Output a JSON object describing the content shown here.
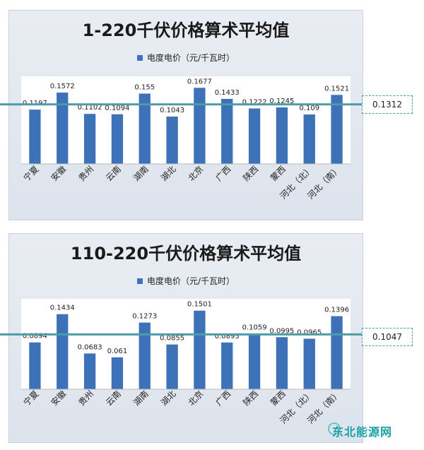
{
  "colors": {
    "bar": "#3d72b8",
    "avg_line": "#4e9ba6",
    "panel": "#e3e8ef"
  },
  "chart_data": [
    {
      "type": "bar",
      "title": "1-220千伏价格算术平均值",
      "legend": "电度电价（元/千瓦时）",
      "categories": [
        "宁夏",
        "安徽",
        "贵州",
        "云南",
        "湖南",
        "湖北",
        "北京",
        "广西",
        "陕西",
        "蒙西",
        "河北（北）",
        "河北（南）"
      ],
      "series": [
        {
          "name": "电度电价（元/千瓦时）",
          "values": [
            0.1197,
            0.1572,
            0.1102,
            0.1094,
            0.155,
            0.1043,
            0.1677,
            0.1433,
            0.1222,
            0.1245,
            0.109,
            0.1521
          ]
        }
      ],
      "value_labels": [
        "0.1197",
        "0.1572",
        "0.1102",
        "0.1094",
        "0.155",
        "0.1043",
        "0.1677",
        "0.1433",
        "0.1222",
        "0.1245",
        "0.109",
        "0.1521"
      ],
      "average": 0.1312,
      "average_label": "0.1312",
      "ylim": [
        0,
        0.19
      ]
    },
    {
      "type": "bar",
      "title": "110-220千伏价格算术平均值",
      "legend": "电度电价（元/千瓦时）",
      "categories": [
        "宁夏",
        "安徽",
        "贵州",
        "云南",
        "湖南",
        "湖北",
        "北京",
        "广西",
        "陕西",
        "蒙西",
        "河北（北）",
        "河北（南）"
      ],
      "series": [
        {
          "name": "电度电价（元/千瓦时）",
          "values": [
            0.0894,
            0.1434,
            0.0683,
            0.061,
            0.1273,
            0.0855,
            0.1501,
            0.0893,
            0.1059,
            0.0995,
            0.0965,
            0.1396
          ]
        }
      ],
      "value_labels": [
        "0.0894",
        "0.1434",
        "0.0683",
        "0.061",
        "0.1273",
        "0.0855",
        "0.1501",
        "0.0893",
        "0.1059",
        "0.0995",
        "0.0965",
        "0.1396"
      ],
      "average": 0.1047,
      "average_label": "0.1047",
      "ylim": [
        0,
        0.17
      ]
    }
  ],
  "watermark": "东北能源网"
}
